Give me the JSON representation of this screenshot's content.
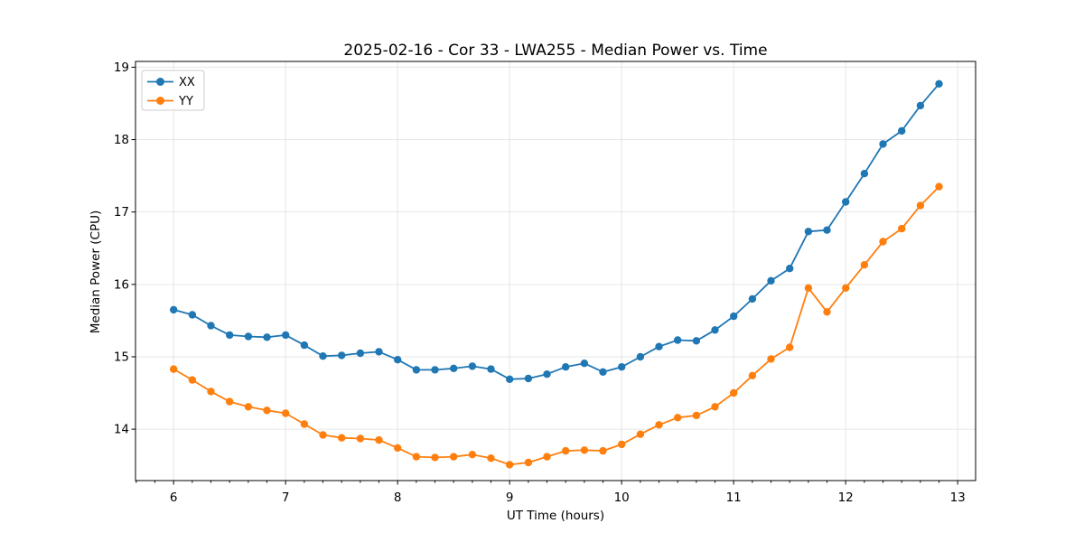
{
  "chart_data": {
    "type": "line",
    "title": "2025-02-16 - Cor 33 - LWA255 - Median Power vs. Time",
    "xlabel": "UT Time (hours)",
    "ylabel": "Median Power (CPU)",
    "xlim": [
      5.66,
      13.16
    ],
    "ylim": [
      13.29,
      19.08
    ],
    "xticks": [
      6,
      7,
      8,
      9,
      10,
      11,
      12,
      13
    ],
    "yticks": [
      14,
      15,
      16,
      17,
      18,
      19
    ],
    "minor_xtick_step_hours": 0.16667,
    "grid": true,
    "legend": {
      "position": "upper-left",
      "entries": [
        "XX",
        "YY"
      ]
    },
    "x": [
      6.0,
      6.167,
      6.333,
      6.5,
      6.667,
      6.833,
      7.0,
      7.167,
      7.333,
      7.5,
      7.667,
      7.833,
      8.0,
      8.167,
      8.333,
      8.5,
      8.667,
      8.833,
      9.0,
      9.167,
      9.333,
      9.5,
      9.667,
      9.833,
      10.0,
      10.167,
      10.333,
      10.5,
      10.667,
      10.833,
      11.0,
      11.167,
      11.333,
      11.5,
      11.667,
      11.833,
      12.0,
      12.167,
      12.333,
      12.5,
      12.667,
      12.833
    ],
    "series": [
      {
        "name": "XX",
        "color": "#1f77b4",
        "marker": "circle",
        "values": [
          15.65,
          15.58,
          15.43,
          15.3,
          15.28,
          15.27,
          15.3,
          15.16,
          15.01,
          15.02,
          15.05,
          15.07,
          14.96,
          14.82,
          14.82,
          14.84,
          14.87,
          14.83,
          14.69,
          14.7,
          14.76,
          14.86,
          14.91,
          14.79,
          14.86,
          15.0,
          15.14,
          15.23,
          15.22,
          15.37,
          15.56,
          15.8,
          16.05,
          16.22,
          16.73,
          16.75,
          17.14,
          17.53,
          17.94,
          18.12,
          18.47,
          18.77
        ]
      },
      {
        "name": "YY",
        "color": "#ff7f0e",
        "marker": "circle",
        "values": [
          14.83,
          14.68,
          14.52,
          14.38,
          14.31,
          14.26,
          14.22,
          14.07,
          13.92,
          13.88,
          13.87,
          13.85,
          13.74,
          13.62,
          13.61,
          13.62,
          13.65,
          13.6,
          13.51,
          13.54,
          13.62,
          13.7,
          13.71,
          13.7,
          13.79,
          13.93,
          14.06,
          14.16,
          14.19,
          14.31,
          14.5,
          14.74,
          14.97,
          15.13,
          15.95,
          15.62,
          15.95,
          16.27,
          16.59,
          16.77,
          17.09,
          17.35
        ]
      }
    ]
  },
  "style_colors": {
    "background": "#ffffff",
    "grid": "#e6e6e6",
    "spine": "#000000",
    "text": "#000000",
    "legend_border": "#cccccc",
    "legend_background": "#ffffff"
  }
}
